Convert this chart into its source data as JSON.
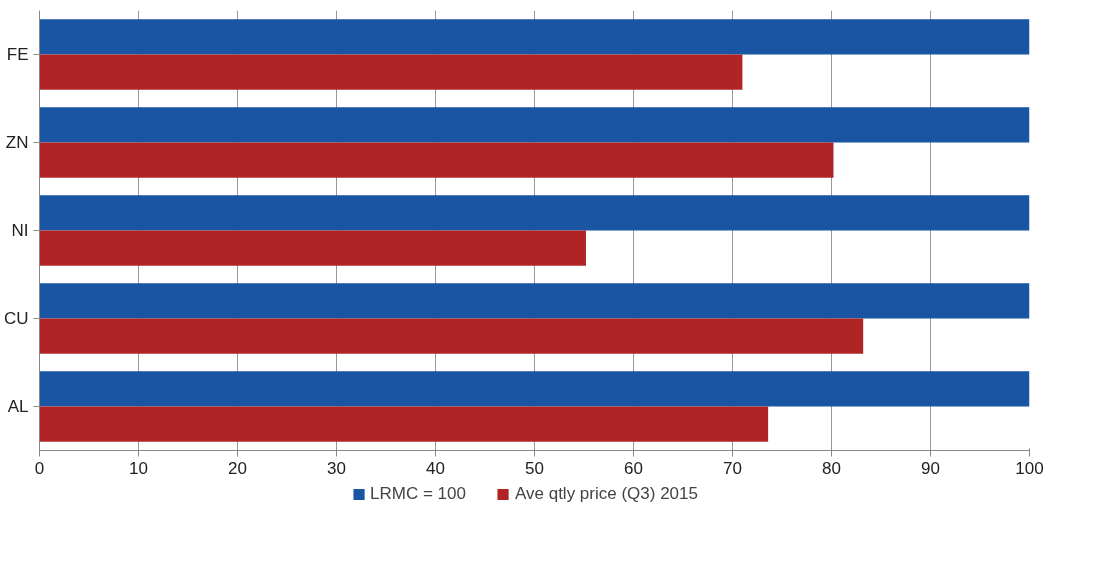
{
  "chart_data": {
    "type": "bar",
    "orientation": "horizontal",
    "categories": [
      "FE",
      "ZN",
      "NI",
      "CU",
      "AL"
    ],
    "series": [
      {
        "name": "LRMC = 100",
        "color": "#1a55a3",
        "values": [
          100,
          100,
          100,
          100,
          100
        ]
      },
      {
        "name": "Ave qtly price (Q3) 2015",
        "color": "#b02426",
        "values": [
          71.0,
          80.2,
          55.2,
          83.2,
          73.6
        ]
      }
    ],
    "xlim": [
      0,
      100
    ],
    "xticks": [
      0,
      10,
      20,
      30,
      40,
      50,
      60,
      70,
      80,
      90,
      100
    ],
    "grid": "x",
    "legend": "bottom"
  }
}
